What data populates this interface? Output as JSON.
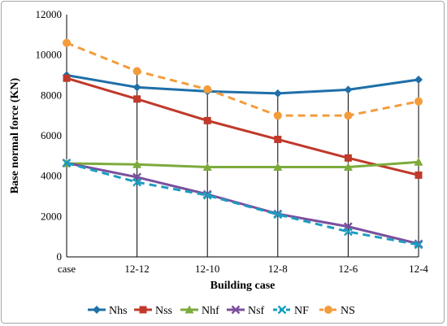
{
  "chart_data": {
    "type": "line",
    "title": "",
    "xlabel": "Building case",
    "ylabel": "Base normal force (KN)",
    "categories": [
      "case",
      "12-12",
      "12-10",
      "12-8",
      "12-6",
      "12-4"
    ],
    "ylim": [
      0,
      12000
    ],
    "yticks": [
      0,
      2000,
      4000,
      6000,
      8000,
      10000,
      12000
    ],
    "grid": "vertical drop lines at each category",
    "legend_position": "bottom",
    "series": [
      {
        "name": "Nhs",
        "color": "#1f6fa8",
        "dashed": false,
        "marker": "diamond",
        "values": [
          9000,
          8400,
          8200,
          8100,
          8280,
          8780
        ]
      },
      {
        "name": "Nss",
        "color": "#c0392b",
        "dashed": false,
        "marker": "square",
        "values": [
          8850,
          7820,
          6750,
          5820,
          4900,
          4050
        ]
      },
      {
        "name": "Nhf",
        "color": "#7cab3c",
        "dashed": false,
        "marker": "triangle",
        "values": [
          4630,
          4580,
          4450,
          4450,
          4450,
          4700
        ]
      },
      {
        "name": "Nsf",
        "color": "#7b4f9d",
        "dashed": false,
        "marker": "x",
        "values": [
          4650,
          3950,
          3100,
          2130,
          1500,
          650
        ]
      },
      {
        "name": "NF",
        "color": "#1a9dc0",
        "dashed": true,
        "marker": "x",
        "values": [
          4650,
          3700,
          3050,
          2100,
          1250,
          600
        ]
      },
      {
        "name": "NS",
        "color": "#f39c3c",
        "dashed": true,
        "marker": "circle",
        "values": [
          10600,
          9200,
          8300,
          7000,
          7000,
          7700
        ]
      }
    ]
  }
}
